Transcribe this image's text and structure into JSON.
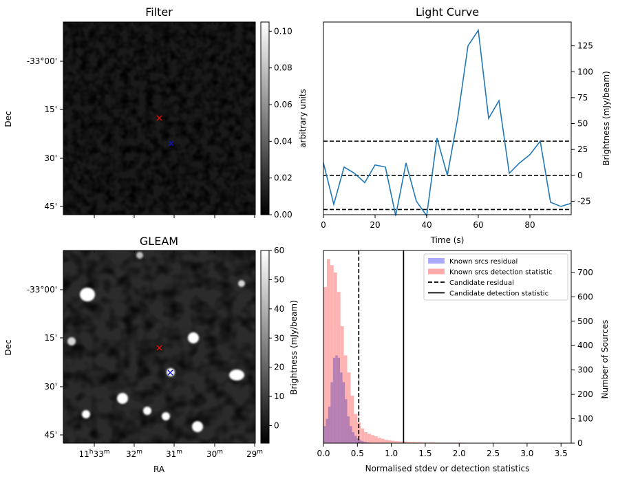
{
  "panels": {
    "filter": {
      "title": "Filter",
      "ylabel": "Dec",
      "colorbar_label": "arbitrary units",
      "colorbar_ticks": [
        "0.00",
        "0.02",
        "0.04",
        "0.06",
        "0.08",
        "0.10"
      ],
      "colorbar_range": [
        0,
        0.105
      ]
    },
    "gleam": {
      "title": "GLEAM",
      "ylabel": "Dec",
      "xlabel": "RA",
      "colorbar_label": "Brightness (mJy/beam)",
      "colorbar_ticks": [
        "0",
        "10",
        "20",
        "30",
        "40",
        "50",
        "60"
      ],
      "colorbar_range": [
        -6,
        60
      ]
    }
  },
  "dec_ticks": [
    "-33°00'",
    "15'",
    "30'",
    "45'"
  ],
  "ra_ticks": [
    {
      "main": "11",
      "sup1": "h",
      "mid": "33",
      "sup2": "m"
    },
    {
      "main": "32",
      "sup1": "",
      "mid": "",
      "sup2": "m"
    },
    {
      "main": "31",
      "sup1": "",
      "mid": "",
      "sup2": "m"
    },
    {
      "main": "30",
      "sup1": "",
      "mid": "",
      "sup2": "m"
    },
    {
      "main": "29",
      "sup1": "",
      "mid": "",
      "sup2": "m"
    }
  ],
  "markers": {
    "red": "#dd1111",
    "blue": "#1111cc"
  },
  "chart_data": [
    {
      "type": "line",
      "title": "Light Curve",
      "xlabel": "Time (s)",
      "ylabel": "Brightness (mJy/beam)",
      "xlim": [
        0,
        96
      ],
      "ylim": [
        -38,
        148
      ],
      "xticks": [
        0,
        20,
        40,
        60,
        80
      ],
      "yticks": [
        -25,
        0,
        25,
        50,
        75,
        100,
        125
      ],
      "x": [
        0,
        4,
        8,
        12,
        16,
        20,
        24,
        28,
        32,
        36,
        40,
        44,
        48,
        52,
        56,
        60,
        64,
        68,
        72,
        76,
        80,
        84,
        88,
        92,
        96
      ],
      "y": [
        12,
        -28,
        8,
        2,
        -7,
        10,
        8,
        -39,
        12,
        -25,
        -39,
        36,
        0,
        55,
        125,
        140,
        55,
        72,
        2,
        12,
        20,
        33,
        -26,
        -30,
        -27
      ],
      "color": "#1f77b4",
      "hlines": [
        33,
        0,
        -33
      ]
    },
    {
      "type": "bar",
      "xlabel": "Normalised stdev or detection statistics",
      "ylabel": "Number of Sources",
      "xlim": [
        0,
        3.65
      ],
      "ylim": [
        0,
        790
      ],
      "xticks": [
        0.0,
        0.5,
        1.0,
        1.5,
        2.0,
        2.5,
        3.0,
        3.5
      ],
      "yticks": [
        0,
        100,
        200,
        300,
        400,
        500,
        600,
        700
      ],
      "legend_placement": "top-right",
      "legend": [
        {
          "label": "Known srcs residual",
          "color": "#aaaaff"
        },
        {
          "label": "Known srcs detection statistic",
          "color": "#ffaaaa"
        },
        {
          "label": "Candidate residual",
          "style": "dashed"
        },
        {
          "label": "Candidate detection statistic",
          "style": "solid"
        }
      ],
      "series": [
        {
          "name": "Known srcs residual",
          "color": "#aaaaff",
          "bin_start": 0.0,
          "bin_width": 0.035,
          "values": [
            70,
            100,
            150,
            250,
            350,
            360,
            350,
            290,
            250,
            180,
            110,
            70,
            45,
            30,
            20,
            12,
            8,
            5,
            3,
            2,
            1
          ]
        },
        {
          "name": "Known srcs detection statistic",
          "color": "#ffaaaa",
          "bin_start": 0.0,
          "bin_width": 0.05,
          "values": [
            640,
            755,
            730,
            700,
            620,
            480,
            360,
            290,
            195,
            120,
            85,
            60,
            45,
            38,
            33,
            28,
            22,
            18,
            14,
            12,
            10,
            8,
            7,
            6,
            6,
            5,
            5,
            4,
            4,
            3,
            3,
            3,
            3,
            2,
            2,
            2,
            2,
            2,
            2,
            2,
            2,
            2,
            1,
            1,
            1,
            1,
            1,
            1,
            1,
            1,
            1,
            1,
            1,
            1,
            1,
            1,
            1,
            1,
            1,
            1,
            1,
            1,
            1,
            1,
            1,
            1,
            1,
            1,
            1,
            1
          ]
        }
      ],
      "vlines": [
        {
          "x": 0.52,
          "style": "dashed"
        },
        {
          "x": 1.18,
          "style": "solid"
        }
      ]
    }
  ]
}
